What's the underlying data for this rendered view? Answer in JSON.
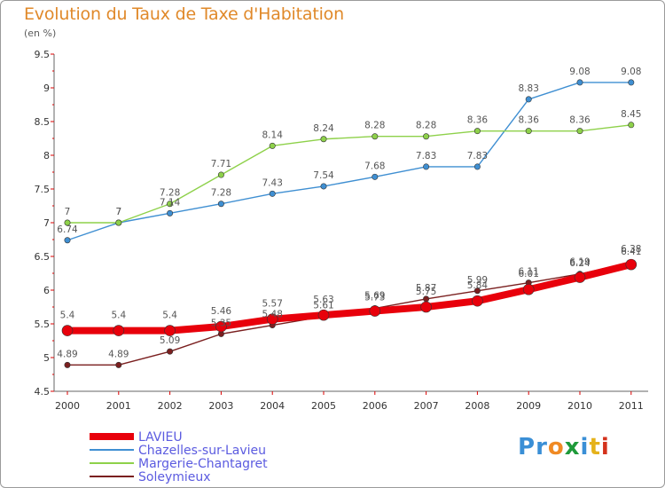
{
  "chart_data": {
    "type": "line",
    "title": "Evolution du Taux de Taxe d'Habitation",
    "ylabel": "(en %)",
    "ylim": [
      4.5,
      9.5
    ],
    "yticks": [
      "4.5",
      "5",
      "5.5",
      "6",
      "6.5",
      "7",
      "7.5",
      "8",
      "8.5",
      "9",
      "9.5"
    ],
    "x": [
      "2000",
      "2001",
      "2002",
      "2003",
      "2004",
      "2005",
      "2006",
      "2007",
      "2008",
      "2009",
      "2010",
      "2011"
    ],
    "series": [
      {
        "name": "LAVIEU",
        "color": "#e8000b",
        "values": [
          5.4,
          5.4,
          5.4,
          5.46,
          5.57,
          5.63,
          5.69,
          5.75,
          5.84,
          6.01,
          6.19,
          6.38
        ],
        "labels": [
          "5.4",
          "5.4",
          "5.4",
          "5.46",
          "5.57",
          "5.63",
          "5.69",
          "5.75",
          "5.84",
          "6.01",
          "6.19",
          "6.38"
        ]
      },
      {
        "name": "Chazelles-sur-Lavieu",
        "color": "#3f8fd2",
        "values": [
          6.74,
          7,
          7.14,
          7.28,
          7.43,
          7.54,
          7.68,
          7.83,
          7.83,
          8.83,
          9.08,
          9.08
        ],
        "labels": [
          "6.74",
          "7",
          "7.14",
          "7.28",
          "7.43",
          "7.54",
          "7.68",
          "7.83",
          "7.83",
          "8.83",
          "9.08",
          "9.08"
        ]
      },
      {
        "name": "Margerie-Chantagret",
        "color": "#8ed14a",
        "values": [
          7,
          7,
          7.28,
          7.71,
          8.14,
          8.24,
          8.28,
          8.28,
          8.36,
          8.36,
          8.36,
          8.45
        ],
        "labels": [
          "7",
          "7",
          "7.28",
          "7.71",
          "8.14",
          "8.24",
          "8.28",
          "8.28",
          "8.36",
          "8.36",
          "8.36",
          "8.45"
        ]
      },
      {
        "name": "Soleymieux",
        "color": "#7a1f1f",
        "values": [
          4.89,
          4.89,
          5.09,
          5.35,
          5.48,
          5.61,
          5.73,
          5.87,
          5.99,
          6.11,
          6.24,
          6.41
        ],
        "labels": [
          "4.89",
          "4.89",
          "5.09",
          "5.35",
          "5.48",
          "5.61",
          "5.73",
          "5.87",
          "5.99",
          "6.11",
          "6.24",
          "6.41"
        ]
      }
    ],
    "grid": false,
    "legend_position": "bottom-left"
  },
  "logo_text": "Proxiti",
  "logo_letters": [
    "P",
    "r",
    "o",
    "x",
    "i",
    "t",
    "i"
  ]
}
